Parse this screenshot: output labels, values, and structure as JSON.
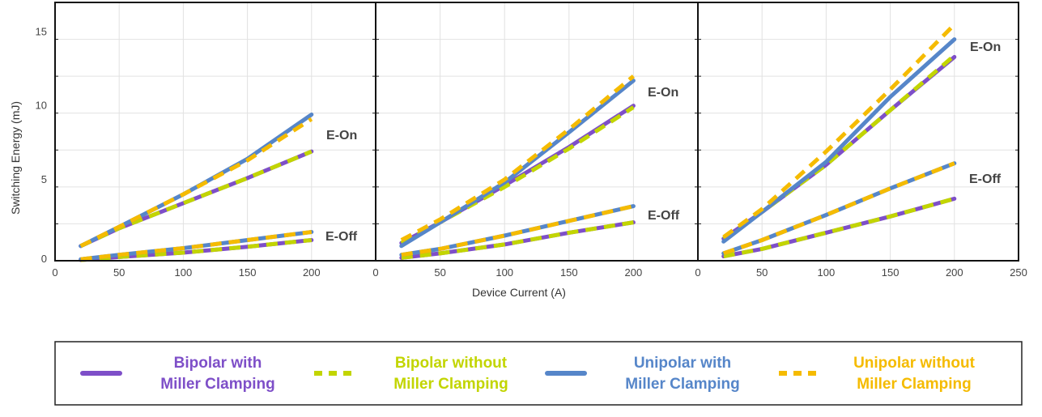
{
  "chart_data": {
    "type": "line",
    "ylabel": "Switching Energy (mJ)",
    "xlabel": "Device Current (A)",
    "ylim": [
      0,
      17.5
    ],
    "xlim": [
      0,
      250
    ],
    "y_ticks": [
      0,
      5,
      10,
      15
    ],
    "grid": true,
    "legend_position": "bottom",
    "colors": {
      "Bipolar with Miller Clamping": "#7e4fc8",
      "Bipolar without Miller Clamping": "#c2d500",
      "Unipolar with Miller Clamping": "#5686c9",
      "Unipolar without Miller Clamping": "#f5bb00"
    },
    "legend": [
      {
        "line1": "Bipolar with",
        "line2": "Miller Clamping",
        "style": "solid",
        "color": "#7e4fc8"
      },
      {
        "line1": "Bipolar without",
        "line2": "Miller Clamping",
        "style": "dashed",
        "color": "#c2d500"
      },
      {
        "line1": "Unipolar with",
        "line2": "Miller Clamping",
        "style": "solid",
        "color": "#5686c9"
      },
      {
        "line1": "Unipolar without",
        "line2": "Miller Clamping",
        "style": "dashed",
        "color": "#f5bb00"
      }
    ],
    "annotations": {
      "on": "E-On",
      "off": "E-Off"
    },
    "x": [
      20,
      50,
      100,
      150,
      200
    ],
    "panels": [
      {
        "x_ticks": [
          0,
          50,
          100,
          150,
          200
        ],
        "series": [
          {
            "name": "Bipolar with Miller Clamping",
            "eon": [
              1.0,
              2.2,
              3.9,
              5.6,
              7.4
            ],
            "eoff": [
              0.05,
              0.25,
              0.55,
              0.95,
              1.4
            ]
          },
          {
            "name": "Bipolar without Miller Clamping",
            "eon": [
              1.0,
              2.2,
              3.9,
              5.6,
              7.4
            ],
            "eoff": [
              0.05,
              0.25,
              0.55,
              0.95,
              1.4
            ]
          },
          {
            "name": "Unipolar with Miller Clamping",
            "eon": [
              1.0,
              2.3,
              4.5,
              6.9,
              9.9
            ],
            "eoff": [
              0.1,
              0.4,
              0.85,
              1.4,
              1.95
            ]
          },
          {
            "name": "Unipolar without Miller Clamping",
            "eon": [
              1.0,
              2.3,
              4.5,
              6.8,
              9.6
            ],
            "eoff": [
              0.1,
              0.4,
              0.85,
              1.4,
              1.95
            ]
          }
        ]
      },
      {
        "x_ticks": [
          0,
          50,
          100,
          150,
          200
        ],
        "series": [
          {
            "name": "Bipolar with Miller Clamping",
            "eon": [
              1.2,
              2.6,
              5.1,
              7.7,
              10.5
            ],
            "eoff": [
              0.2,
              0.5,
              1.1,
              1.9,
              2.6
            ]
          },
          {
            "name": "Bipolar without Miller Clamping",
            "eon": [
              1.2,
              2.6,
              5.0,
              7.6,
              10.4
            ],
            "eoff": [
              0.2,
              0.5,
              1.1,
              1.9,
              2.6
            ]
          },
          {
            "name": "Unipolar with Miller Clamping",
            "eon": [
              1.0,
              2.6,
              5.3,
              8.7,
              12.2
            ],
            "eoff": [
              0.4,
              0.8,
              1.7,
              2.7,
              3.7
            ]
          },
          {
            "name": "Unipolar without Miller Clamping",
            "eon": [
              1.4,
              2.8,
              5.5,
              8.9,
              12.5
            ],
            "eoff": [
              0.4,
              0.8,
              1.7,
              2.7,
              3.7
            ]
          }
        ]
      },
      {
        "x_ticks": [
          0,
          50,
          100,
          150,
          200,
          250
        ],
        "series": [
          {
            "name": "Bipolar with Miller Clamping",
            "eon": [
              1.5,
              3.3,
              6.5,
              10.2,
              13.8
            ],
            "eoff": [
              0.3,
              0.8,
              1.9,
              3.0,
              4.2
            ]
          },
          {
            "name": "Bipolar without Miller Clamping",
            "eon": [
              1.5,
              3.3,
              6.5,
              10.2,
              13.9
            ],
            "eoff": [
              0.3,
              0.8,
              1.9,
              3.0,
              4.2
            ]
          },
          {
            "name": "Unipolar with Miller Clamping",
            "eon": [
              1.3,
              3.3,
              6.7,
              11.1,
              15.0
            ],
            "eoff": [
              0.5,
              1.4,
              3.1,
              4.9,
              6.6
            ]
          },
          {
            "name": "Unipolar without Miller Clamping",
            "eon": [
              1.6,
              3.5,
              7.4,
              11.6,
              16.0
            ],
            "eoff": [
              0.5,
              1.4,
              3.1,
              4.9,
              6.6
            ]
          }
        ]
      }
    ]
  }
}
